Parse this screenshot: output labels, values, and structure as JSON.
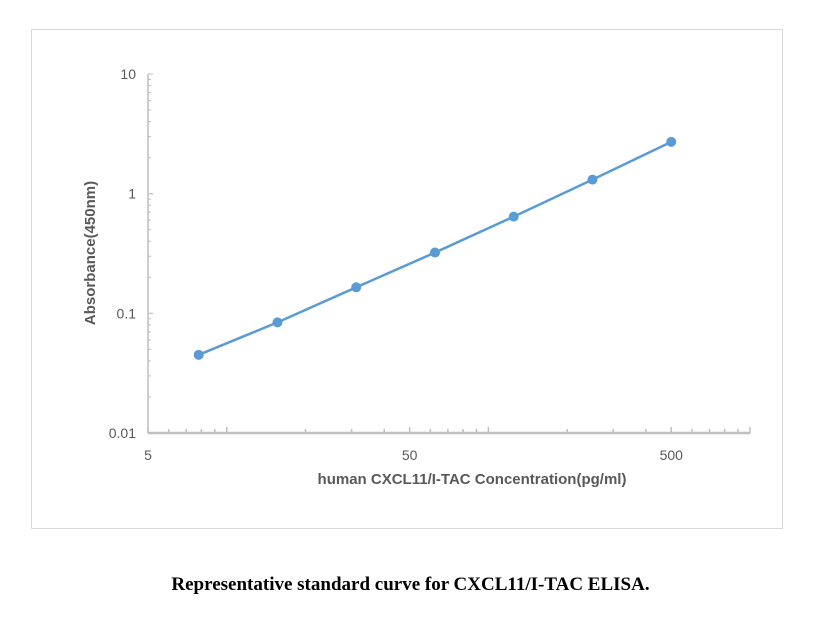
{
  "chart_data": {
    "type": "line",
    "title": "",
    "xlabel": "human CXCL11/I-TAC Concentration(pg/ml)",
    "ylabel": "Absorbance(450nm)",
    "xscale": "log",
    "yscale": "log",
    "xlim": [
      5,
      1000
    ],
    "ylim": [
      0.01,
      10
    ],
    "xticks": [
      5,
      50,
      500
    ],
    "xtick_labels": [
      "5",
      "50",
      "500"
    ],
    "yticks": [
      0.01,
      0.1,
      1,
      10
    ],
    "ytick_labels": [
      "0.01",
      "0.1",
      "1",
      "10"
    ],
    "grid": false,
    "legend": "none",
    "color": "#5b9bd5",
    "series": [
      {
        "x": [
          7.8125,
          15.625,
          31.25,
          62.5,
          125,
          250,
          500
        ],
        "y": [
          0.045,
          0.084,
          0.165,
          0.322,
          0.643,
          1.31,
          2.71
        ]
      }
    ]
  },
  "caption": "Representative standard curve for CXCL11/I-TAC ELISA."
}
